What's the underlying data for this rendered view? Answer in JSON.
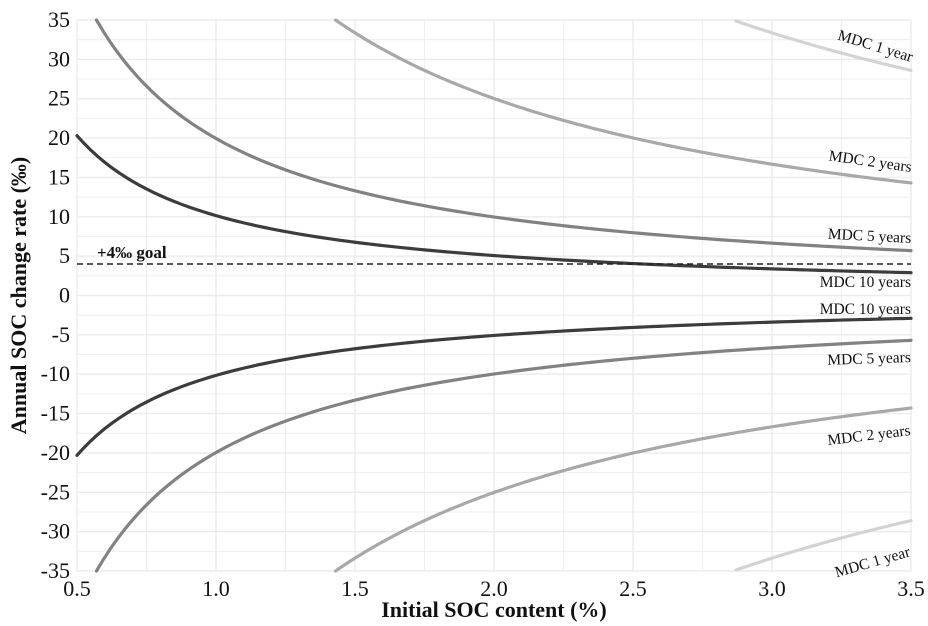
{
  "chart_data": {
    "type": "line",
    "xlabel": "Initial SOC content (%)",
    "ylabel": "Annual SOC change rate (‰)",
    "xlim": [
      0.5,
      3.5
    ],
    "ylim": [
      -35,
      35
    ],
    "x_ticks": [
      "0.5",
      "1.0",
      "1.5",
      "2.0",
      "2.5",
      "3.0",
      "3.5"
    ],
    "y_ticks": [
      "35",
      "30",
      "25",
      "20",
      "15",
      "10",
      "5",
      "0",
      "-5",
      "-10",
      "-15",
      "-20",
      "-25",
      "-30",
      "-35"
    ],
    "grid": true,
    "reference_line": {
      "y": 4,
      "label": "+4‰ goal",
      "style": "dashed"
    },
    "colors": {
      "mdc1": "#d3d3d3",
      "mdc2": "#a8a8a8",
      "mdc5": "#828282",
      "mdc10": "#3c3c3c",
      "goal": "#222222",
      "grid": "#ebebeb"
    },
    "series": [
      {
        "name": "MDC 1 year",
        "sign": 1,
        "x_start": 2.87,
        "x": [
          2.87,
          3.0,
          3.2,
          3.5
        ],
        "y": [
          34.8,
          33.3,
          31.3,
          28.6
        ]
      },
      {
        "name": "MDC 2 years",
        "sign": 1,
        "x_start": 1.43,
        "x": [
          1.43,
          1.5,
          2.0,
          2.5,
          3.0,
          3.5
        ],
        "y": [
          34.8,
          33.3,
          25.0,
          20.0,
          16.7,
          14.3
        ]
      },
      {
        "name": "MDC 5 years",
        "sign": 1,
        "x_start": 0.57,
        "x": [
          0.57,
          1.0,
          1.5,
          2.0,
          2.5,
          3.0,
          3.5
        ],
        "y": [
          35.0,
          20.0,
          13.3,
          10.0,
          8.0,
          6.7,
          5.7
        ]
      },
      {
        "name": "MDC 10 years",
        "sign": 1,
        "x_start": 0.5,
        "x": [
          0.5,
          1.0,
          1.5,
          2.0,
          2.5,
          3.0,
          3.5
        ],
        "y": [
          20.0,
          10.0,
          6.7,
          5.0,
          4.0,
          3.3,
          2.9
        ]
      },
      {
        "name": "MDC 10 years",
        "sign": -1,
        "x_start": 0.5,
        "x": [
          0.5,
          1.0,
          1.5,
          2.0,
          2.5,
          3.0,
          3.5
        ],
        "y": [
          -20.0,
          -10.0,
          -6.7,
          -5.0,
          -4.0,
          -3.3,
          -2.9
        ]
      },
      {
        "name": "MDC 5 years",
        "sign": -1,
        "x_start": 0.57,
        "x": [
          0.57,
          1.0,
          1.5,
          2.0,
          2.5,
          3.0,
          3.5
        ],
        "y": [
          -35.0,
          -20.0,
          -13.3,
          -10.0,
          -8.0,
          -6.7,
          -5.7
        ]
      },
      {
        "name": "MDC 2 years",
        "sign": -1,
        "x_start": 1.43,
        "x": [
          1.43,
          1.5,
          2.0,
          2.5,
          3.0,
          3.5
        ],
        "y": [
          -34.8,
          -33.3,
          -25.0,
          -20.0,
          -16.7,
          -14.3
        ]
      },
      {
        "name": "MDC 1 year",
        "sign": -1,
        "x_start": 2.87,
        "x": [
          2.87,
          3.0,
          3.2,
          3.5
        ],
        "y": [
          -34.8,
          -33.3,
          -31.3,
          -28.6
        ]
      }
    ]
  }
}
